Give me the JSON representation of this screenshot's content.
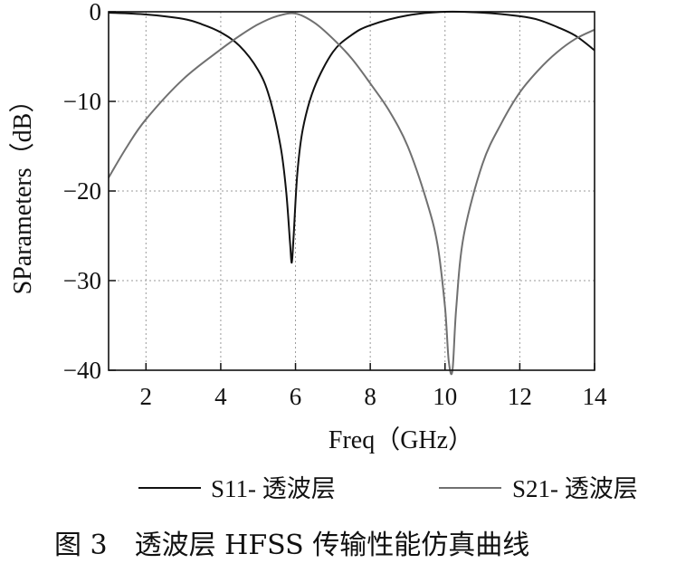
{
  "chart_data": {
    "type": "line",
    "title": "",
    "xlabel": "Freq（GHz）",
    "ylabel": "SParameters（dB）",
    "xlim": [
      1,
      14
    ],
    "ylim": [
      -40,
      0
    ],
    "xticks": [
      2,
      4,
      6,
      8,
      10,
      12,
      14
    ],
    "yticks": [
      0,
      -10,
      -20,
      -30,
      -40
    ],
    "xtick_labels": [
      "2",
      "4",
      "6",
      "8",
      "10",
      "12",
      "14"
    ],
    "ytick_labels": [
      "0",
      "−10",
      "−20",
      "−30",
      "−40"
    ],
    "grid": true,
    "legend_position": "bottom",
    "series": [
      {
        "name": "S11- 透波层",
        "color": "#111111",
        "x": [
          1,
          2,
          3,
          3.5,
          4,
          4.5,
          5,
          5.3,
          5.6,
          5.75,
          5.85,
          5.9,
          5.95,
          6.05,
          6.2,
          6.5,
          7,
          7.5,
          8,
          9,
          10,
          11,
          12,
          12.5,
          13,
          13.5,
          14
        ],
        "y": [
          -0.1,
          -0.3,
          -0.8,
          -1.4,
          -2.3,
          -3.8,
          -6.5,
          -9.5,
          -15,
          -20,
          -25.5,
          -28,
          -25,
          -18,
          -13,
          -8.5,
          -4.5,
          -2.6,
          -1.5,
          -0.4,
          0,
          -0.1,
          -0.5,
          -0.9,
          -1.7,
          -2.7,
          -4.3
        ]
      },
      {
        "name": "S21- 透波层",
        "color": "#707070",
        "x": [
          1,
          1.5,
          2,
          3,
          4,
          4.5,
          5,
          5.5,
          6,
          6.5,
          7,
          7.5,
          8,
          8.5,
          9,
          9.5,
          9.8,
          10,
          10.1,
          10.2,
          10.3,
          10.5,
          11,
          11.5,
          12,
          12.5,
          13,
          13.5,
          14
        ],
        "y": [
          -18.5,
          -15,
          -12,
          -7.5,
          -4.2,
          -2.7,
          -1.4,
          -0.5,
          -0.2,
          -1.2,
          -3,
          -5.2,
          -8,
          -11,
          -15,
          -21,
          -26,
          -33,
          -39,
          -40,
          -33,
          -25,
          -17,
          -12.5,
          -9,
          -6.5,
          -4.5,
          -3,
          -2
        ]
      }
    ]
  },
  "caption": "图 3　透波层 HFSS 传输性能仿真曲线"
}
